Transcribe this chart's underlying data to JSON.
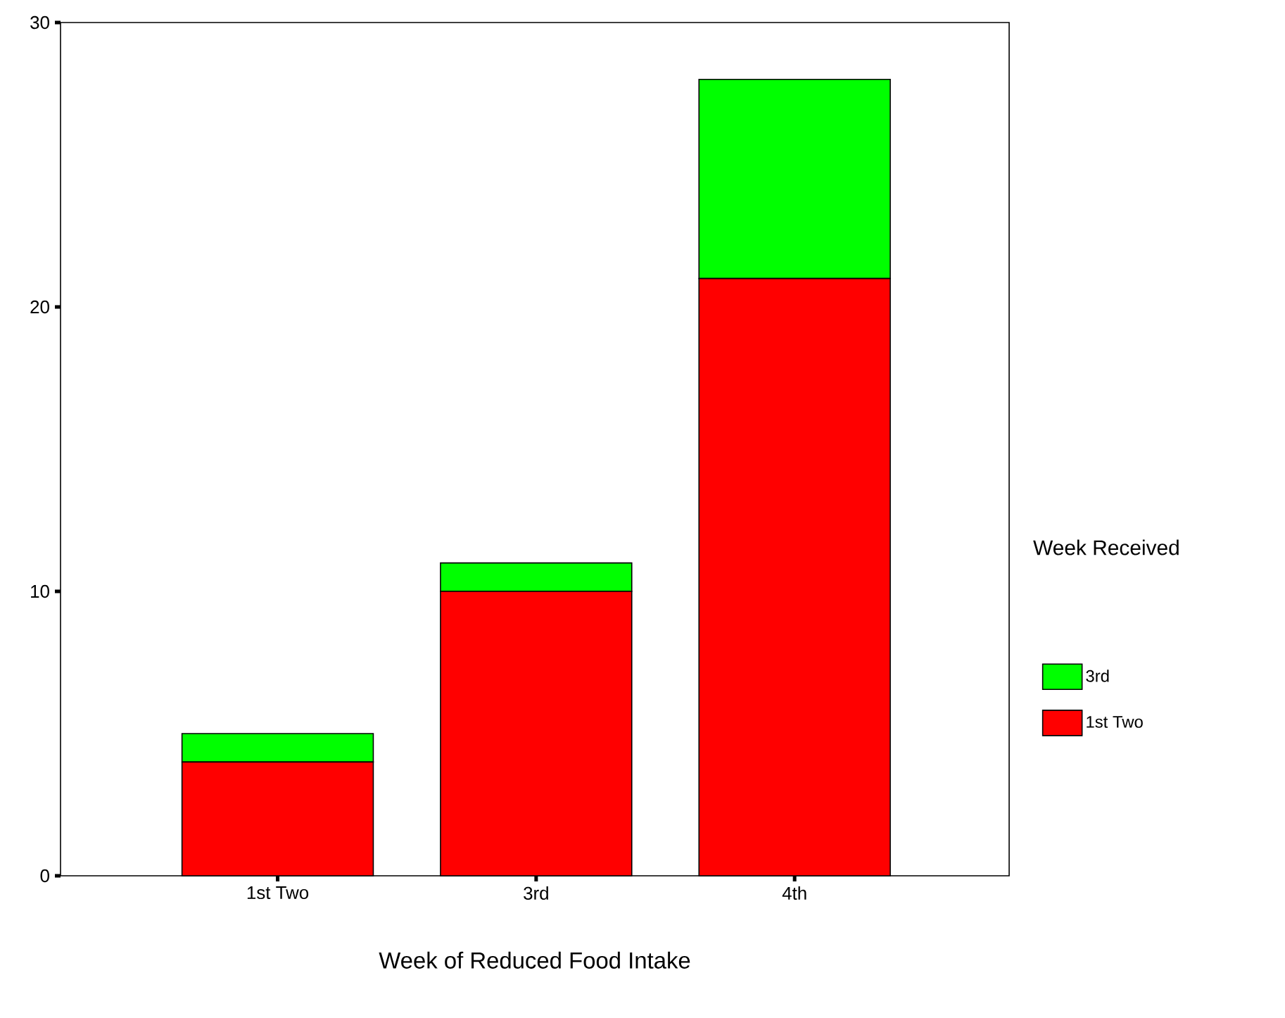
{
  "chart_data": {
    "type": "bar",
    "stacked": true,
    "xlabel": "Week of Reduced Food Intake",
    "legend_title": "Week Received",
    "categories": [
      "1st Two",
      "3rd",
      "4th"
    ],
    "series": [
      {
        "name": "1st Two",
        "color": "#ff0000",
        "values": [
          4,
          10,
          21
        ]
      },
      {
        "name": "3rd",
        "color": "#00ff00",
        "values": [
          1,
          1,
          7
        ]
      }
    ],
    "ylim": [
      0,
      30
    ],
    "yticks": [
      0,
      10,
      20,
      30
    ],
    "legend": "right"
  }
}
